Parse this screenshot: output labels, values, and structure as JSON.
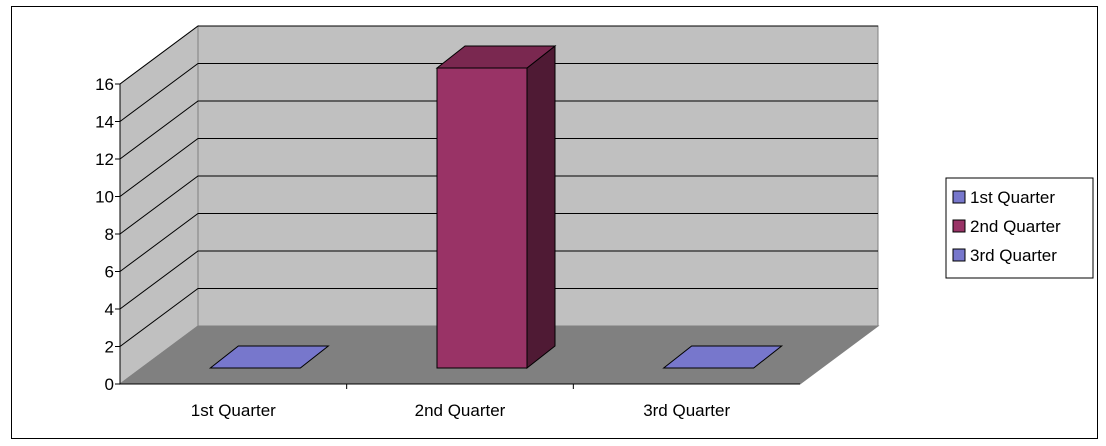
{
  "chart_data": {
    "type": "bar",
    "style": "3d-column",
    "categories": [
      "1st Quarter",
      "2nd Quarter",
      "3rd Quarter"
    ],
    "values": [
      0,
      16,
      0
    ],
    "ylim": [
      0,
      16
    ],
    "yticks": [
      "0",
      "2",
      "4",
      "6",
      "8",
      "10",
      "12",
      "14",
      "16"
    ],
    "title": "",
    "xlabel": "",
    "ylabel": "",
    "grid": true,
    "legend_position": "right",
    "legend": [
      {
        "label": "1st Quarter",
        "color": "#7777cc"
      },
      {
        "label": "2nd Quarter",
        "color": "#993366"
      },
      {
        "label": "3rd Quarter",
        "color": "#7777cc"
      }
    ],
    "colors": {
      "wall": "#c0c0c0",
      "floor": "#808080",
      "bar_front": "#993366",
      "bar_side": "#4f1a34",
      "bar_top": "#7a2850",
      "flat_bar": "#7777cc"
    }
  }
}
